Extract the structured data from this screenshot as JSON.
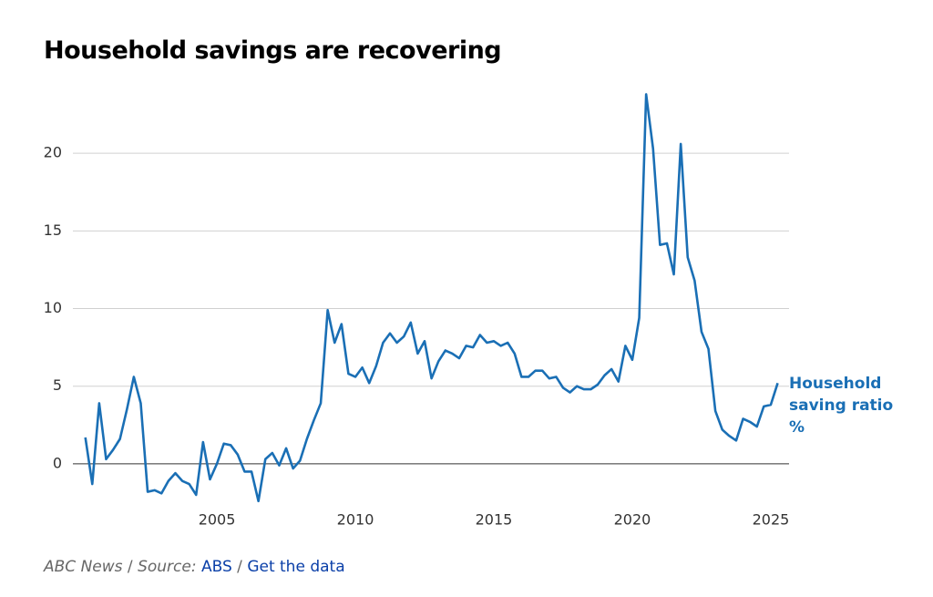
{
  "chart_data": {
    "type": "line",
    "title": "Household savings are recovering",
    "x": [
      2000.25,
      2000.5,
      2000.75,
      2001,
      2001.25,
      2001.5,
      2001.75,
      2002,
      2002.25,
      2002.5,
      2002.75,
      2003,
      2003.25,
      2003.5,
      2003.75,
      2004,
      2004.25,
      2004.5,
      2004.75,
      2005,
      2005.25,
      2005.5,
      2005.75,
      2006,
      2006.25,
      2006.5,
      2006.75,
      2007,
      2007.25,
      2007.5,
      2007.75,
      2008,
      2008.25,
      2008.5,
      2008.75,
      2009,
      2009.25,
      2009.5,
      2009.75,
      2010,
      2010.25,
      2010.5,
      2010.75,
      2011,
      2011.25,
      2011.5,
      2011.75,
      2012,
      2012.25,
      2012.5,
      2012.75,
      2013,
      2013.25,
      2013.5,
      2013.75,
      2014,
      2014.25,
      2014.5,
      2014.75,
      2015,
      2015.25,
      2015.5,
      2015.75,
      2016,
      2016.25,
      2016.5,
      2016.75,
      2017,
      2017.25,
      2017.5,
      2017.75,
      2018,
      2018.25,
      2018.5,
      2018.75,
      2019,
      2019.25,
      2019.5,
      2019.75,
      2020,
      2020.25,
      2020.5,
      2020.75,
      2021,
      2021.25,
      2021.5,
      2021.75,
      2022,
      2022.25,
      2022.5,
      2022.75,
      2023,
      2023.25,
      2023.5,
      2023.75,
      2024,
      2024.25,
      2024.5,
      2024.75,
      2025,
      2025.25
    ],
    "series": [
      {
        "name": "Household saving ratio %",
        "color": "#1a6fb5",
        "values": [
          1.7,
          -1.3,
          3.9,
          0.3,
          0.9,
          1.6,
          3.5,
          5.6,
          3.9,
          -1.8,
          -1.7,
          -1.9,
          -1.1,
          -0.6,
          -1.1,
          -1.3,
          -2.0,
          1.4,
          -1.0,
          0.0,
          1.3,
          1.2,
          0.6,
          -0.5,
          -0.5,
          -2.4,
          0.3,
          0.7,
          -0.1,
          1.0,
          -0.3,
          0.2,
          1.6,
          2.8,
          3.9,
          9.9,
          7.8,
          9.0,
          5.8,
          5.6,
          6.2,
          5.2,
          6.3,
          7.8,
          8.4,
          7.8,
          8.2,
          9.1,
          7.1,
          7.9,
          5.5,
          6.6,
          7.3,
          7.1,
          6.8,
          7.6,
          7.5,
          8.3,
          7.8,
          7.9,
          7.6,
          7.8,
          7.1,
          5.6,
          5.6,
          6.0,
          6.0,
          5.5,
          5.6,
          4.9,
          4.6,
          5.0,
          4.8,
          4.8,
          5.1,
          5.7,
          6.1,
          5.3,
          7.6,
          6.7,
          9.4,
          23.8,
          20.3,
          14.1,
          14.2,
          12.2,
          20.6,
          13.3,
          11.8,
          8.5,
          7.4,
          3.4,
          2.2,
          1.8,
          1.5,
          2.9,
          2.7,
          2.4,
          3.7,
          3.8,
          5.2
        ]
      }
    ],
    "xlim": [
      1999.8,
      2025.66
    ],
    "xticks": [
      2005,
      2010,
      2015,
      2020,
      2025
    ],
    "ylim": [
      -3,
      24
    ],
    "yticks": [
      0,
      5,
      10,
      15,
      20
    ],
    "grid": true,
    "footer": {
      "credit": "ABC News",
      "separator": "/",
      "source_label": "Source:",
      "source": "ABS",
      "link": "Get the data"
    }
  }
}
